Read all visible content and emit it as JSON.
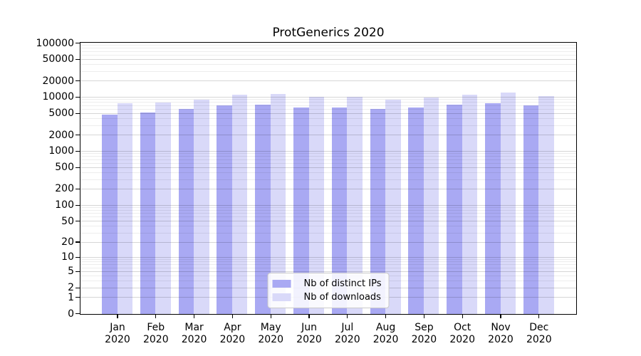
{
  "chart_data": {
    "type": "bar",
    "title": "ProtGenerics 2020",
    "scale": "pseudo-log: y = log10(value + 1)",
    "categories": [
      "Jan",
      "Feb",
      "Mar",
      "Apr",
      "May",
      "Jun",
      "Jul",
      "Aug",
      "Sep",
      "Oct",
      "Nov",
      "Dec"
    ],
    "year_label": "2020",
    "series": [
      {
        "name": "Nb of distinct IPs",
        "color": "#a9a9f3",
        "values": [
          4900,
          5300,
          6100,
          7200,
          7300,
          6600,
          6500,
          6100,
          6600,
          7500,
          7900,
          7100
        ]
      },
      {
        "name": "Nb of downloads",
        "color": "#d9d9f9",
        "values": [
          7800,
          8200,
          9100,
          11300,
          11500,
          10400,
          10300,
          9000,
          9900,
          11400,
          12300,
          10500
        ]
      }
    ],
    "y_ticks": [
      0,
      1,
      2,
      5,
      10,
      20,
      50,
      100,
      200,
      500,
      1000,
      2000,
      5000,
      10000,
      20000,
      50000,
      100000
    ],
    "ylim": [
      0,
      100000
    ],
    "grid": true,
    "grid_minor": true,
    "legend_position": "lower center",
    "axis_color": "#000000",
    "background_color": "#ffffff"
  }
}
